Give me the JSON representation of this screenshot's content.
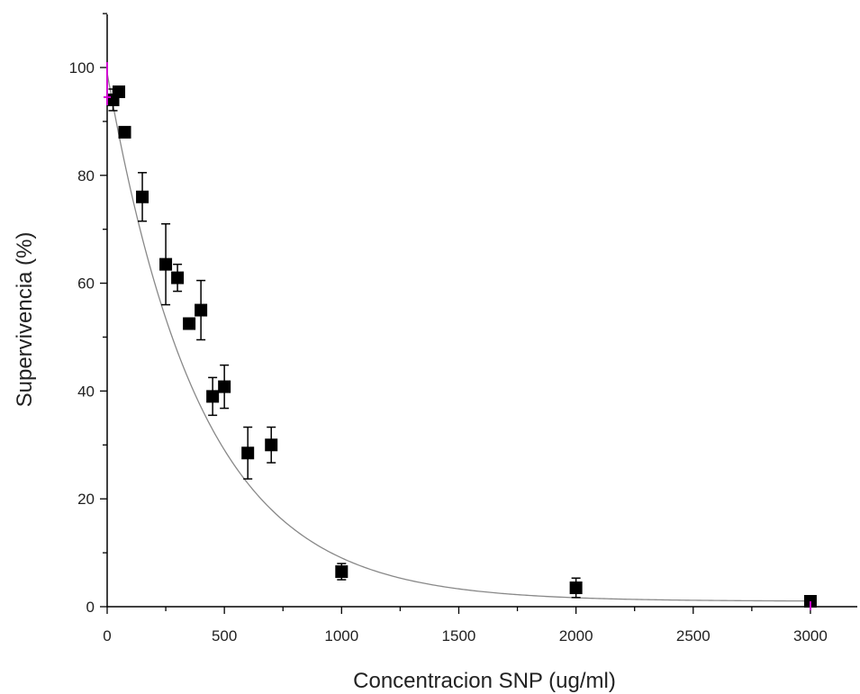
{
  "chart_data": {
    "type": "scatter",
    "title": "",
    "xlabel": "Concentracion SNP (ug/ml)",
    "ylabel": "Supervivencia (%)",
    "xlim": [
      0,
      3200
    ],
    "ylim": [
      0,
      110
    ],
    "x_ticks": [
      0,
      500,
      1000,
      1500,
      2000,
      2500,
      3000
    ],
    "y_ticks": [
      0,
      20,
      40,
      60,
      80,
      100
    ],
    "grid": false,
    "legend": "none",
    "colors": {
      "points": "#000000",
      "fit_line": "#888888",
      "axis": "#000000",
      "error_bars": "#000000",
      "control_markers": "#d000d0"
    },
    "series": [
      {
        "name": "",
        "x": [
          25,
          50,
          75,
          150,
          250,
          300,
          350,
          400,
          450,
          500,
          600,
          700,
          1000,
          2000,
          3000
        ],
        "y": [
          94,
          95.5,
          88,
          76,
          63.5,
          61,
          52.5,
          55,
          39,
          40.8,
          28.5,
          30,
          6.5,
          3.5,
          1
        ],
        "yerr": [
          2,
          1,
          1,
          4.5,
          7.5,
          2.5,
          1,
          5.5,
          3.5,
          4,
          4.8,
          3.3,
          1.5,
          1.8,
          0.5
        ]
      }
    ],
    "fit_curve": {
      "model": "decay",
      "y0": 1,
      "A": 98,
      "x0": 0,
      "k": 0.0025,
      "x_range": [
        0,
        3000
      ]
    }
  }
}
